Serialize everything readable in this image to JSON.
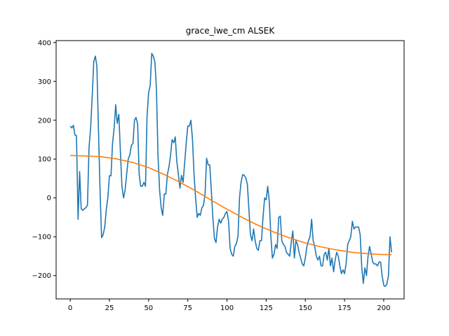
{
  "chart_data": {
    "type": "line",
    "title": "grace_lwe_cm ALSEK",
    "xlabel": "",
    "ylabel": "",
    "xlim": [
      -9,
      213
    ],
    "ylim": [
      -260,
      405
    ],
    "x_ticks": [
      0,
      25,
      50,
      75,
      100,
      125,
      150,
      175,
      200
    ],
    "y_ticks": [
      -200,
      -100,
      0,
      100,
      200,
      300,
      400
    ],
    "grid": false,
    "legend": "none",
    "colors": {
      "series_1": "#1f77b4",
      "series_2": "#ff7f0e"
    },
    "series": [
      {
        "points": [
          [
            0,
            185
          ],
          [
            1,
            180
          ],
          [
            2,
            187
          ],
          [
            3,
            162
          ],
          [
            4,
            160
          ],
          [
            5,
            -55
          ],
          [
            6,
            68
          ],
          [
            7,
            -28
          ],
          [
            8,
            -32
          ],
          [
            9,
            -28
          ],
          [
            10,
            -25
          ],
          [
            11,
            -18
          ],
          [
            12,
            130
          ],
          [
            13,
            180
          ],
          [
            14,
            260
          ],
          [
            15,
            350
          ],
          [
            16,
            365
          ],
          [
            17,
            340
          ],
          [
            18,
            180
          ],
          [
            19,
            20
          ],
          [
            20,
            -102
          ],
          [
            21,
            -95
          ],
          [
            22,
            -75
          ],
          [
            23,
            -30
          ],
          [
            24,
            0
          ],
          [
            25,
            57
          ],
          [
            26,
            57
          ],
          [
            27,
            140
          ],
          [
            28,
            180
          ],
          [
            29,
            240
          ],
          [
            30,
            192
          ],
          [
            31,
            215
          ],
          [
            32,
            120
          ],
          [
            33,
            30
          ],
          [
            34,
            0
          ],
          [
            35,
            20
          ],
          [
            36,
            60
          ],
          [
            37,
            100
          ],
          [
            38,
            110
          ],
          [
            39,
            135
          ],
          [
            40,
            140
          ],
          [
            41,
            200
          ],
          [
            42,
            207
          ],
          [
            43,
            190
          ],
          [
            44,
            60
          ],
          [
            45,
            30
          ],
          [
            46,
            30
          ],
          [
            47,
            40
          ],
          [
            48,
            30
          ],
          [
            49,
            210
          ],
          [
            50,
            270
          ],
          [
            51,
            290
          ],
          [
            52,
            372
          ],
          [
            53,
            365
          ],
          [
            54,
            350
          ],
          [
            55,
            280
          ],
          [
            56,
            110
          ],
          [
            57,
            20
          ],
          [
            58,
            -25
          ],
          [
            59,
            -45
          ],
          [
            60,
            10
          ],
          [
            61,
            10
          ],
          [
            62,
            60
          ],
          [
            63,
            80
          ],
          [
            64,
            110
          ],
          [
            65,
            150
          ],
          [
            66,
            142
          ],
          [
            67,
            157
          ],
          [
            68,
            95
          ],
          [
            69,
            60
          ],
          [
            70,
            25
          ],
          [
            71,
            58
          ],
          [
            72,
            40
          ],
          [
            73,
            90
          ],
          [
            74,
            140
          ],
          [
            75,
            185
          ],
          [
            76,
            185
          ],
          [
            77,
            200
          ],
          [
            78,
            150
          ],
          [
            79,
            60
          ],
          [
            80,
            0
          ],
          [
            81,
            -50
          ],
          [
            82,
            -40
          ],
          [
            83,
            -45
          ],
          [
            84,
            -25
          ],
          [
            85,
            -20
          ],
          [
            86,
            10
          ],
          [
            87,
            102
          ],
          [
            88,
            85
          ],
          [
            89,
            85
          ],
          [
            90,
            20
          ],
          [
            91,
            -50
          ],
          [
            92,
            -105
          ],
          [
            93,
            -115
          ],
          [
            94,
            -75
          ],
          [
            95,
            -55
          ],
          [
            96,
            -65
          ],
          [
            97,
            -55
          ],
          [
            98,
            -50
          ],
          [
            99,
            -40
          ],
          [
            100,
            -35
          ],
          [
            101,
            -60
          ],
          [
            102,
            -130
          ],
          [
            103,
            -145
          ],
          [
            104,
            -150
          ],
          [
            105,
            -125
          ],
          [
            106,
            -118
          ],
          [
            107,
            -100
          ],
          [
            108,
            0
          ],
          [
            109,
            40
          ],
          [
            110,
            60
          ],
          [
            111,
            58
          ],
          [
            112,
            52
          ],
          [
            113,
            35
          ],
          [
            114,
            -30
          ],
          [
            115,
            -95
          ],
          [
            116,
            -110
          ],
          [
            117,
            -80
          ],
          [
            118,
            -110
          ],
          [
            119,
            -130
          ],
          [
            120,
            -135
          ],
          [
            121,
            -110
          ],
          [
            122,
            -110
          ],
          [
            123,
            -50
          ],
          [
            124,
            0
          ],
          [
            125,
            -5
          ],
          [
            126,
            30
          ],
          [
            127,
            -10
          ],
          [
            128,
            -100
          ],
          [
            129,
            -155
          ],
          [
            130,
            -145
          ],
          [
            131,
            -120
          ],
          [
            132,
            -130
          ],
          [
            133,
            -50
          ],
          [
            134,
            -47
          ],
          [
            135,
            -110
          ],
          [
            136,
            -120
          ],
          [
            137,
            -125
          ],
          [
            138,
            -140
          ],
          [
            139,
            -145
          ],
          [
            140,
            -150
          ],
          [
            141,
            -115
          ],
          [
            142,
            -85
          ],
          [
            143,
            -155
          ],
          [
            144,
            -110
          ],
          [
            145,
            -120
          ],
          [
            146,
            -140
          ],
          [
            147,
            -155
          ],
          [
            148,
            -170
          ],
          [
            149,
            -175
          ],
          [
            150,
            -155
          ],
          [
            151,
            -125
          ],
          [
            152,
            -110
          ],
          [
            153,
            -100
          ],
          [
            154,
            -55
          ],
          [
            155,
            -110
          ],
          [
            156,
            -125
          ],
          [
            157,
            -150
          ],
          [
            158,
            -160
          ],
          [
            159,
            -150
          ],
          [
            160,
            -175
          ],
          [
            161,
            -175
          ],
          [
            162,
            -145
          ],
          [
            163,
            -140
          ],
          [
            164,
            -160
          ],
          [
            165,
            -130
          ],
          [
            166,
            -175
          ],
          [
            167,
            -155
          ],
          [
            168,
            -190
          ],
          [
            169,
            -160
          ],
          [
            170,
            -140
          ],
          [
            171,
            -150
          ],
          [
            172,
            -175
          ],
          [
            173,
            -195
          ],
          [
            174,
            -185
          ],
          [
            175,
            -195
          ],
          [
            176,
            -170
          ],
          [
            177,
            -120
          ],
          [
            178,
            -110
          ],
          [
            179,
            -100
          ],
          [
            180,
            -60
          ],
          [
            181,
            -80
          ],
          [
            182,
            -75
          ],
          [
            183,
            -75
          ],
          [
            184,
            -75
          ],
          [
            185,
            -95
          ],
          [
            186,
            -180
          ],
          [
            187,
            -220
          ],
          [
            188,
            -180
          ],
          [
            189,
            -200
          ],
          [
            190,
            -150
          ],
          [
            191,
            -125
          ],
          [
            192,
            -145
          ],
          [
            193,
            -165
          ],
          [
            194,
            -170
          ],
          [
            195,
            -170
          ],
          [
            196,
            -175
          ],
          [
            197,
            -165
          ],
          [
            198,
            -165
          ],
          [
            199,
            -200
          ],
          [
            200,
            -225
          ],
          [
            201,
            -228
          ],
          [
            202,
            -222
          ],
          [
            203,
            -200
          ],
          [
            204,
            -100
          ],
          [
            205,
            -140
          ]
        ]
      },
      {
        "points": [
          [
            0,
            109
          ],
          [
            10,
            108
          ],
          [
            20,
            106
          ],
          [
            30,
            100
          ],
          [
            40,
            91
          ],
          [
            50,
            78
          ],
          [
            60,
            60
          ],
          [
            70,
            40
          ],
          [
            80,
            18
          ],
          [
            90,
            -6
          ],
          [
            100,
            -29
          ],
          [
            110,
            -51
          ],
          [
            120,
            -71
          ],
          [
            130,
            -88
          ],
          [
            140,
            -103
          ],
          [
            150,
            -116
          ],
          [
            160,
            -126
          ],
          [
            170,
            -134
          ],
          [
            180,
            -140
          ],
          [
            190,
            -144
          ],
          [
            200,
            -146
          ],
          [
            205,
            -146
          ]
        ]
      }
    ]
  }
}
